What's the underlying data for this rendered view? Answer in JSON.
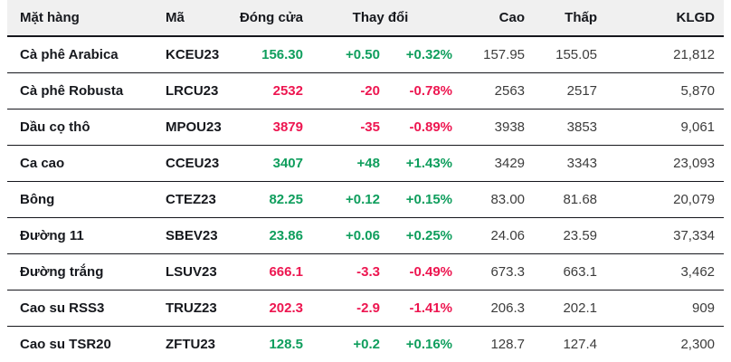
{
  "colors": {
    "up": "#0f9e5d",
    "down": "#ed1650",
    "header_bg": "#f0f0f0",
    "border": "#16171d",
    "text_primary": "#16181d",
    "text_secondary": "#3c3c3c"
  },
  "chart_data": {
    "type": "table",
    "title": "",
    "headers": {
      "item": "Mặt hàng",
      "code": "Mã",
      "close": "Đóng cửa",
      "change": "Thay đổi",
      "high": "Cao",
      "low": "Thấp",
      "volume": "KLGD"
    },
    "rows": [
      {
        "name": "Cà phê Arabica",
        "code": "KCEU23",
        "close": "156.30",
        "change": "+0.50",
        "change_pct": "+0.32%",
        "high": "157.95",
        "low": "155.05",
        "volume": "21,812",
        "dir": "up"
      },
      {
        "name": "Cà phê Robusta",
        "code": "LRCU23",
        "close": "2532",
        "change": "-20",
        "change_pct": "-0.78%",
        "high": "2563",
        "low": "2517",
        "volume": "5,870",
        "dir": "down"
      },
      {
        "name": "Dầu cọ thô",
        "code": "MPOU23",
        "close": "3879",
        "change": "-35",
        "change_pct": "-0.89%",
        "high": "3938",
        "low": "3853",
        "volume": "9,061",
        "dir": "down"
      },
      {
        "name": "Ca cao",
        "code": "CCEU23",
        "close": "3407",
        "change": "+48",
        "change_pct": "+1.43%",
        "high": "3429",
        "low": "3343",
        "volume": "23,093",
        "dir": "up"
      },
      {
        "name": "Bông",
        "code": "CTEZ23",
        "close": "82.25",
        "change": "+0.12",
        "change_pct": "+0.15%",
        "high": "83.00",
        "low": "81.68",
        "volume": "20,079",
        "dir": "up"
      },
      {
        "name": "Đường 11",
        "code": "SBEV23",
        "close": "23.86",
        "change": "+0.06",
        "change_pct": "+0.25%",
        "high": "24.06",
        "low": "23.59",
        "volume": "37,334",
        "dir": "up"
      },
      {
        "name": "Đường trắng",
        "code": "LSUV23",
        "close": "666.1",
        "change": "-3.3",
        "change_pct": "-0.49%",
        "high": "673.3",
        "low": "663.1",
        "volume": "3,462",
        "dir": "down"
      },
      {
        "name": "Cao su RSS3",
        "code": "TRUZ23",
        "close": "202.3",
        "change": "-2.9",
        "change_pct": "-1.41%",
        "high": "206.3",
        "low": "202.1",
        "volume": "909",
        "dir": "down"
      },
      {
        "name": "Cao su TSR20",
        "code": "ZFTU23",
        "close": "128.5",
        "change": "+0.2",
        "change_pct": "+0.16%",
        "high": "128.7",
        "low": "127.4",
        "volume": "2,300",
        "dir": "up"
      }
    ]
  }
}
